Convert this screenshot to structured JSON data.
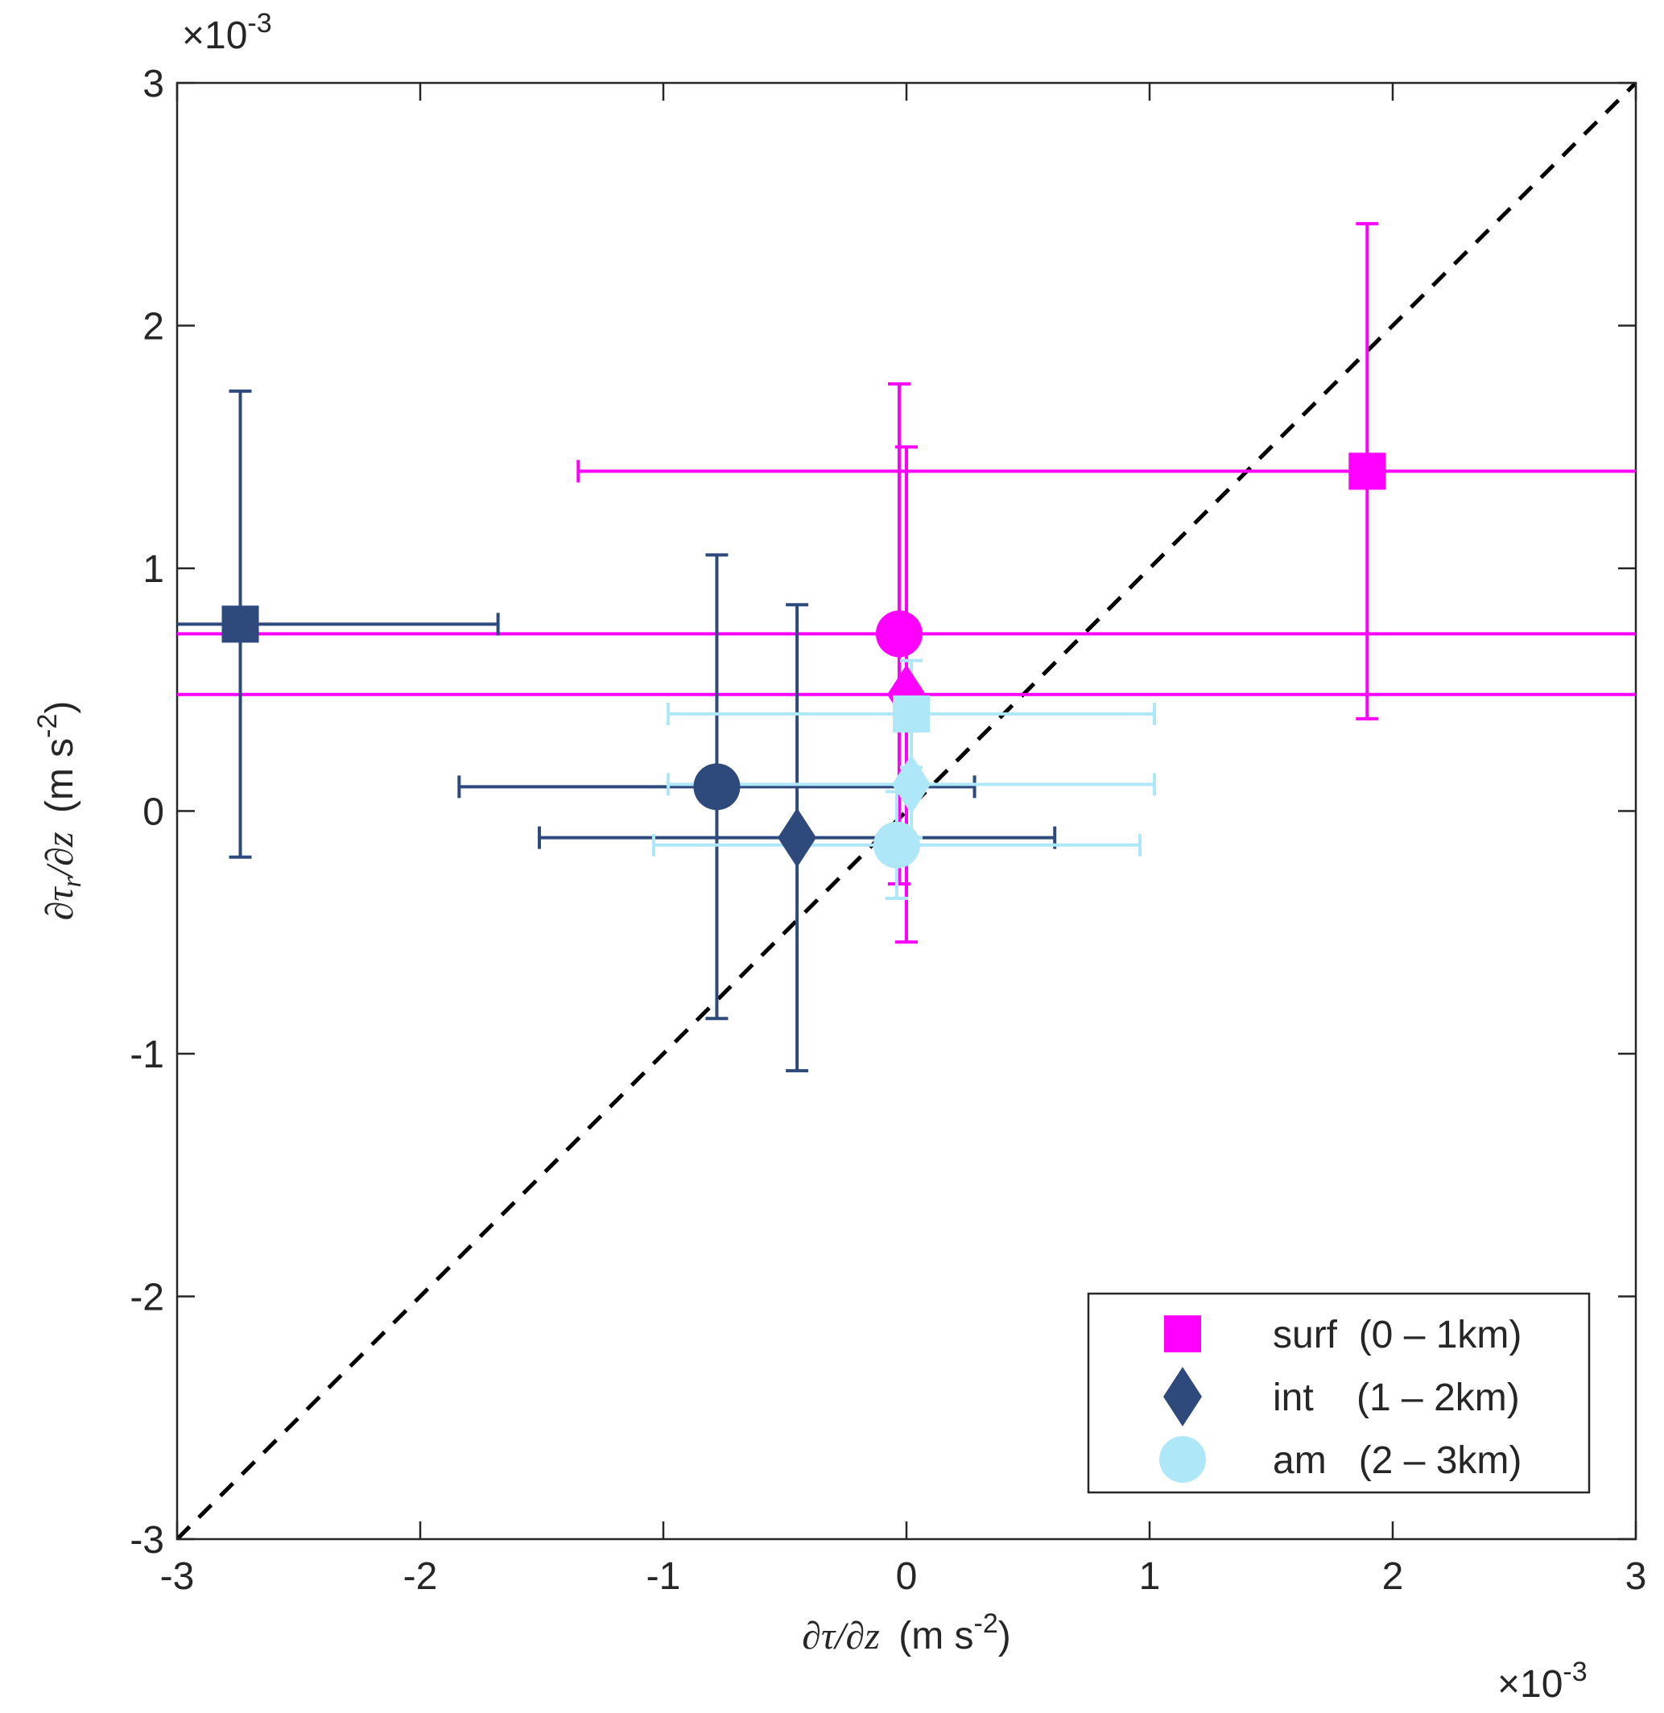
{
  "chart_data": {
    "type": "scatter",
    "xlabel": {
      "text": "∂τ/∂z",
      "units": "(m s",
      "sup": "-2",
      "end": ")"
    },
    "ylabel": {
      "text": "∂τ",
      "sub": "r",
      "text2": "/∂z",
      "units": "(m s",
      "sup": "-2",
      "end": ")"
    },
    "x_scale_label": {
      "base": "×10",
      "exponent": "-3"
    },
    "y_scale_label": {
      "base": "×10",
      "exponent": "-3"
    },
    "xlim": [
      -3,
      3
    ],
    "ylim": [
      -3,
      3
    ],
    "xticks": [
      -3,
      -2,
      -1,
      0,
      1,
      2,
      3
    ],
    "yticks": [
      -3,
      -2,
      -1,
      0,
      1,
      2,
      3
    ],
    "identity_line": true,
    "legend_position": "lower right",
    "series": [
      {
        "name": "surf  (0 – 1km)",
        "color": "#ff00ff",
        "legend_marker": "square",
        "markers": [
          "square",
          "circle",
          "diamond"
        ],
        "x": [
          1.895,
          -0.03,
          0.0
        ],
        "values": [
          1.4,
          0.73,
          0.48
        ],
        "xerr": [
          3.245,
          4.0,
          4.0
        ],
        "yerr": [
          1.02,
          1.03,
          1.02
        ]
      },
      {
        "name": "int    (1 – 2km)",
        "color": "#2e4a7d",
        "legend_marker": "diamond",
        "markers": [
          "square",
          "circle",
          "diamond"
        ],
        "x": [
          -2.74,
          -0.78,
          -0.45
        ],
        "values": [
          0.77,
          0.1,
          -0.11
        ],
        "xerr": [
          1.06,
          1.06,
          1.06
        ],
        "yerr": [
          0.96,
          0.955,
          0.96
        ]
      },
      {
        "name": "am   (2 – 3km)",
        "color": "#aee8f8",
        "legend_marker": "circle",
        "markers": [
          "square",
          "diamond",
          "circle"
        ],
        "x": [
          0.02,
          0.02,
          -0.04
        ],
        "values": [
          0.4,
          0.11,
          -0.14
        ],
        "xerr": [
          1.0,
          1.0,
          1.0
        ],
        "yerr": [
          0.22,
          0.22,
          0.22
        ]
      }
    ]
  }
}
